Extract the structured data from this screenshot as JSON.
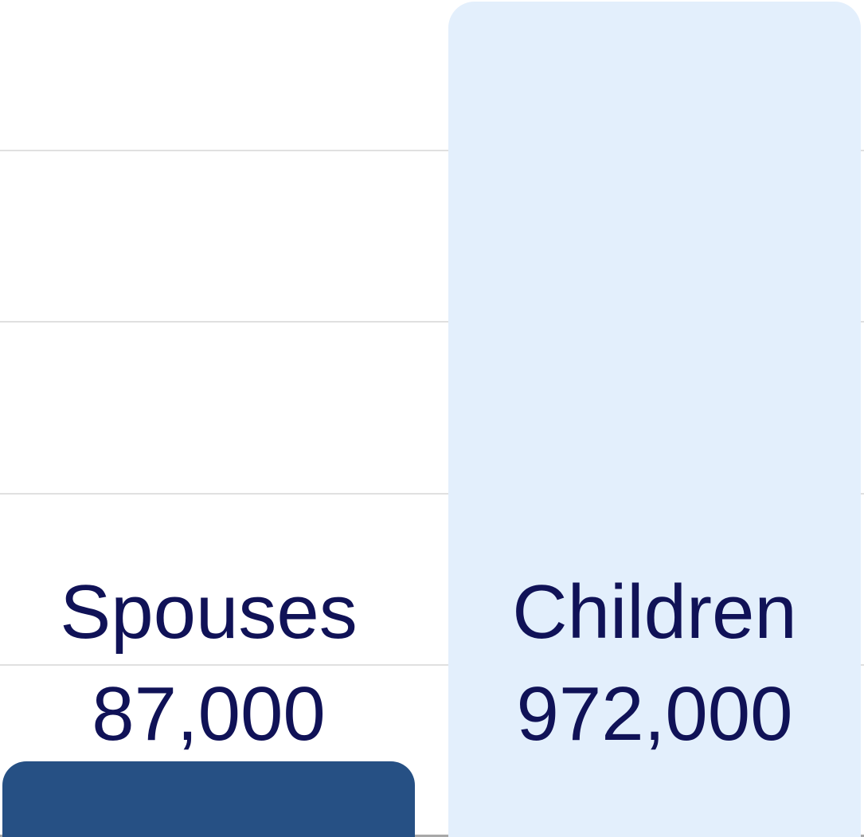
{
  "chart_data": {
    "type": "bar",
    "title": "",
    "xlabel": "",
    "ylabel": "",
    "categories": [
      "Spouses",
      "Children"
    ],
    "series": [
      {
        "name": "Spouses",
        "value": 87000,
        "value_label": "87,000",
        "bar_color": "#265084"
      },
      {
        "name": "Children",
        "value": 972000,
        "value_label": "972,000",
        "bar_color": "#e3effc"
      }
    ],
    "grid": "horizontal",
    "legend_position": "none",
    "y_gridline_values": [
      200000,
      400000,
      600000,
      800000
    ],
    "y_gridline_interval_estimated": 200000,
    "y_baseline_value": 0
  },
  "colors": {
    "background": "#ffffff",
    "label_text": "#101257",
    "gridline": "#e0e0e0",
    "axis_line": "#a8a8a8"
  }
}
